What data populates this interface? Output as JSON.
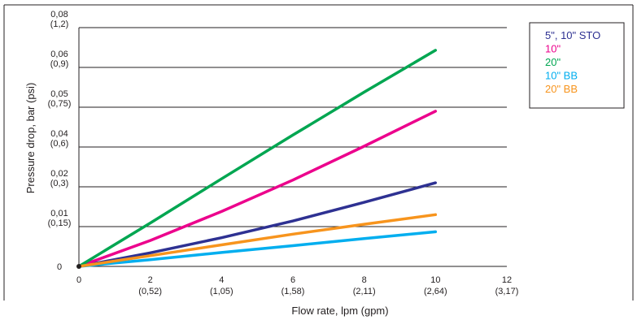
{
  "chart_data": {
    "type": "line",
    "title": "",
    "xlabel": "Flow rate, lpm (gpm)",
    "ylabel": "Pressure drop, bar (psi)",
    "xlim": [
      0,
      12
    ],
    "ylim": [
      0,
      6
    ],
    "grid": "horizontal",
    "legend_position": "top-right",
    "x_ticks": [
      {
        "value": 0,
        "label": "0",
        "sub": ""
      },
      {
        "value": 2,
        "label": "2",
        "sub": "(0,52)"
      },
      {
        "value": 4,
        "label": "4",
        "sub": "(1,05)"
      },
      {
        "value": 6,
        "label": "6",
        "sub": "(1,58)"
      },
      {
        "value": 8,
        "label": "8",
        "sub": "(2,11)"
      },
      {
        "value": 10,
        "label": "10",
        "sub": "(2,64)"
      },
      {
        "value": 12,
        "label": "12",
        "sub": "(3,17)"
      }
    ],
    "y_ticks": [
      {
        "value": 0,
        "label": "0",
        "sub": ""
      },
      {
        "value": 1,
        "label": "0,01",
        "sub": "(0,15)"
      },
      {
        "value": 2,
        "label": "0,02",
        "sub": "(0,3)"
      },
      {
        "value": 3,
        "label": "0,04",
        "sub": "(0,6)"
      },
      {
        "value": 4,
        "label": "0,05",
        "sub": "(0,75)"
      },
      {
        "value": 5,
        "label": "0,06",
        "sub": "(0,9)"
      },
      {
        "value": 6,
        "label": "0,08",
        "sub": "(1,2)"
      }
    ],
    "series": [
      {
        "name": "5\", 10\" STO",
        "color": "#2e3192",
        "x": [
          0,
          2,
          4,
          6,
          8,
          10
        ],
        "y": [
          0,
          0.34,
          0.72,
          1.14,
          1.61,
          2.1
        ]
      },
      {
        "name": "10\"",
        "color": "#ec008c",
        "x": [
          0,
          2,
          4,
          6,
          8,
          10
        ],
        "y": [
          0,
          0.65,
          1.38,
          2.17,
          3.02,
          3.9
        ]
      },
      {
        "name": "20\"",
        "color": "#00a651",
        "x": [
          0,
          2,
          4,
          6,
          8,
          10
        ],
        "y": [
          0,
          1.09,
          2.2,
          3.3,
          4.38,
          5.43
        ]
      },
      {
        "name": "10\" BB",
        "color": "#00aeef",
        "x": [
          0,
          2,
          4,
          6,
          8,
          10
        ],
        "y": [
          0,
          0.17,
          0.35,
          0.52,
          0.7,
          0.87
        ]
      },
      {
        "name": "20\" BB",
        "color": "#f7941d",
        "x": [
          0,
          2,
          4,
          6,
          8,
          10
        ],
        "y": [
          0,
          0.27,
          0.54,
          0.81,
          1.06,
          1.3
        ]
      }
    ]
  }
}
